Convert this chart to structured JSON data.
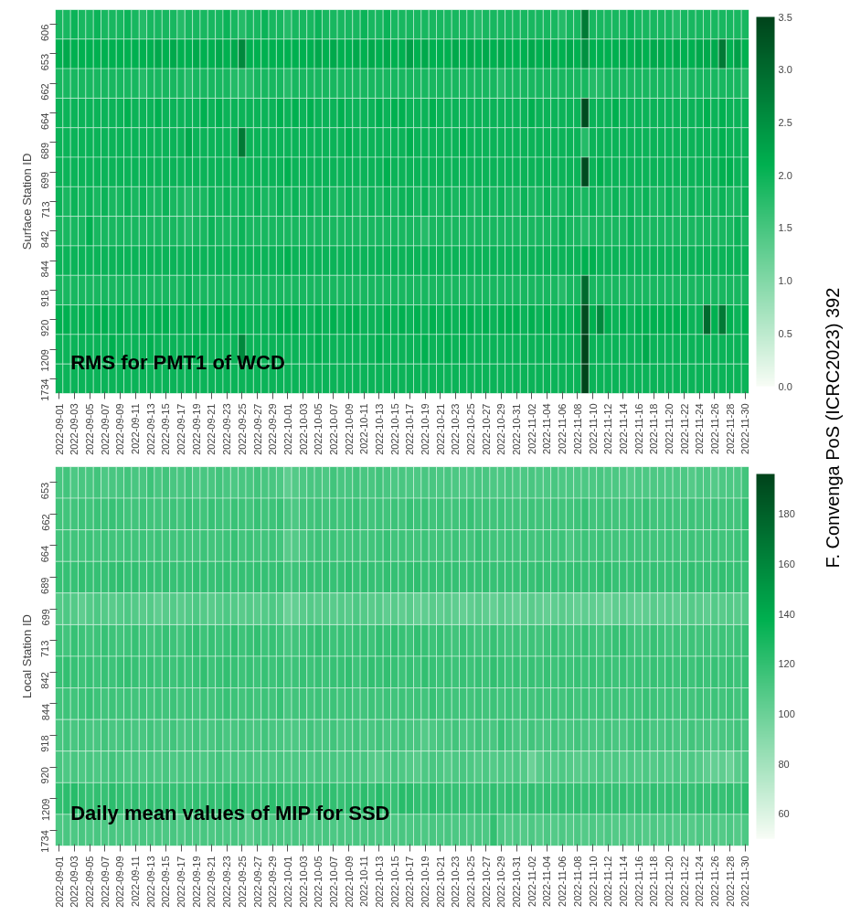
{
  "chart_data": [
    {
      "type": "heatmap",
      "title": "RMS for PMT1 of WCD",
      "ylabel": "Surface Station ID",
      "annotations": [
        "F. Convenga PoS (ICRC2023) 392"
      ],
      "categories": [
        "2022-09-01",
        null,
        "2022-09-03",
        null,
        "2022-09-05",
        null,
        "2022-09-07",
        null,
        "2022-09-09",
        null,
        "2022-09-11",
        null,
        "2022-09-13",
        null,
        "2022-09-15",
        null,
        "2022-09-17",
        null,
        "2022-09-19",
        null,
        "2022-09-21",
        null,
        "2022-09-23",
        null,
        "2022-09-25",
        null,
        "2022-09-27",
        null,
        "2022-09-29",
        null,
        "2022-10-01",
        null,
        "2022-10-03",
        null,
        "2022-10-05",
        null,
        "2022-10-07",
        null,
        "2022-10-09",
        null,
        "2022-10-11",
        null,
        "2022-10-13",
        null,
        "2022-10-15",
        null,
        "2022-10-17",
        null,
        "2022-10-19",
        null,
        "2022-10-21",
        null,
        "2022-10-23",
        null,
        "2022-10-25",
        null,
        "2022-10-27",
        null,
        "2022-10-29",
        null,
        "2022-10-31",
        null,
        "2022-11-02",
        null,
        "2022-11-04",
        null,
        "2022-11-06",
        null,
        "2022-11-08",
        null,
        "2022-11-10",
        null,
        "2022-11-12",
        null,
        "2022-11-14",
        null,
        "2022-11-16",
        null,
        "2022-11-18",
        null,
        "2022-11-20",
        null,
        "2022-11-22",
        null,
        "2022-11-24",
        null,
        "2022-11-26",
        null,
        "2022-11-28",
        null,
        "2022-11-30"
      ],
      "y_categories": [
        "606",
        "653",
        "662",
        "664",
        "689",
        "699",
        "713",
        "842",
        "844",
        "918",
        "920",
        "1209",
        "1734"
      ],
      "clim": [
        0,
        3.5
      ],
      "cticks": [
        {
          "value": 0,
          "label": "0.0"
        },
        {
          "value": 0.5,
          "label": "0.5"
        },
        {
          "value": 1,
          "label": "1.0"
        },
        {
          "value": 1.5,
          "label": "1.5"
        },
        {
          "value": 2,
          "label": "2.0"
        },
        {
          "value": 2.5,
          "label": "2.5"
        },
        {
          "value": 3,
          "label": "3.0"
        },
        {
          "value": 3.5,
          "label": "3.5"
        }
      ],
      "cells": [
        [
          1.9,
          1.9,
          2.0,
          1.9,
          1.9,
          2.0,
          1.9,
          1.9,
          1.9,
          2.0,
          1.9,
          1.8,
          1.9,
          1.9,
          1.9,
          1.9,
          1.8,
          1.9,
          1.9,
          1.9,
          1.9,
          1.9,
          2.0,
          1.9,
          1.8,
          1.9,
          1.9,
          2.0,
          1.9,
          1.9,
          1.8,
          1.9,
          1.9,
          1.9,
          2.0,
          1.9,
          1.9,
          1.9,
          1.9,
          1.9,
          2.0,
          1.9,
          1.9,
          2.0,
          1.9,
          1.9,
          1.9,
          1.9,
          1.9,
          1.9,
          1.9,
          1.9,
          1.9,
          1.9,
          1.9,
          1.8,
          1.9,
          1.9,
          1.9,
          1.9,
          1.9,
          1.9,
          1.9,
          1.9,
          1.9,
          1.9,
          1.8,
          1.9,
          1.9,
          2.8,
          1.9,
          1.9,
          1.9,
          1.9,
          1.9,
          2.0,
          1.9,
          1.9,
          1.9,
          1.9,
          1.9,
          1.8,
          1.9,
          1.9,
          1.9,
          1.9,
          1.9,
          1.9,
          1.9,
          1.9,
          1.9
        ],
        [
          2.1,
          2.2,
          2.1,
          2.1,
          2.1,
          2.1,
          2.1,
          2.1,
          2.1,
          2.1,
          2.1,
          2.1,
          2.1,
          2.2,
          2.1,
          2.2,
          2.1,
          2.1,
          2.2,
          2.1,
          2.1,
          2.2,
          2.1,
          2.2,
          2.6,
          2.1,
          2.1,
          2.1,
          2.1,
          2.1,
          2.1,
          2.1,
          2.1,
          2.1,
          2.2,
          2.1,
          2.2,
          2.1,
          2.1,
          2.2,
          2.1,
          2.2,
          2.1,
          2.2,
          2.1,
          2.1,
          2.3,
          2.1,
          2.2,
          2.1,
          2.1,
          2.1,
          2.2,
          2.1,
          2.2,
          2.1,
          2.2,
          2.1,
          2.2,
          2.1,
          2.1,
          2.1,
          2.2,
          2.1,
          2.2,
          2.1,
          2.1,
          2.2,
          2.1,
          2.5,
          2.1,
          2.1,
          2.1,
          2.1,
          2.2,
          2.1,
          2.2,
          2.1,
          2.2,
          2.2,
          2.1,
          2.2,
          2.1,
          2.1,
          2.2,
          2.2,
          2.2,
          2.8,
          2.1,
          2.3,
          2.1
        ],
        [
          1.9,
          1.9,
          1.9,
          1.9,
          1.9,
          1.9,
          1.9,
          1.9,
          1.9,
          1.9,
          1.9,
          1.8,
          1.9,
          1.9,
          1.9,
          1.9,
          1.9,
          1.8,
          1.9,
          1.9,
          1.9,
          1.9,
          1.9,
          1.8,
          1.8,
          1.8,
          1.9,
          1.9,
          1.9,
          1.9,
          1.8,
          1.9,
          1.9,
          1.9,
          1.9,
          1.9,
          1.9,
          1.9,
          1.9,
          1.9,
          1.9,
          1.9,
          1.9,
          1.9,
          1.9,
          1.9,
          1.9,
          1.9,
          1.9,
          1.9,
          1.9,
          1.9,
          1.9,
          1.9,
          1.9,
          1.9,
          1.9,
          1.9,
          1.8,
          1.9,
          1.9,
          1.9,
          1.9,
          1.9,
          1.9,
          1.9,
          1.9,
          1.9,
          1.9,
          1.9,
          1.8,
          1.8,
          1.9,
          1.9,
          1.9,
          1.9,
          1.9,
          1.9,
          1.9,
          1.9,
          1.9,
          1.9,
          1.8,
          1.9,
          1.9,
          1.9,
          1.9,
          1.9,
          1.9,
          1.9,
          1.8
        ],
        [
          2.0,
          2.0,
          2.0,
          2.0,
          2.0,
          2.0,
          2.0,
          2.0,
          2.0,
          2.1,
          2.0,
          2.0,
          2.0,
          2.1,
          2.0,
          2.0,
          2.0,
          2.0,
          2.0,
          2.1,
          2.0,
          2.1,
          2.0,
          2.0,
          2.0,
          2.0,
          2.0,
          2.0,
          2.0,
          2.1,
          2.0,
          2.1,
          2.0,
          2.1,
          2.0,
          2.0,
          2.0,
          2.1,
          2.0,
          2.0,
          2.0,
          2.0,
          2.1,
          2.0,
          2.1,
          2.1,
          2.0,
          2.0,
          2.0,
          2.1,
          2.0,
          2.0,
          2.0,
          2.0,
          2.0,
          2.0,
          2.0,
          2.0,
          2.0,
          2.0,
          2.0,
          2.0,
          2.1,
          2.0,
          2.0,
          2.0,
          2.0,
          2.0,
          2.0,
          3.4,
          2.0,
          2.0,
          2.0,
          2.1,
          2.0,
          2.0,
          2.0,
          2.0,
          2.0,
          2.0,
          2.0,
          2.0,
          2.0,
          2.0,
          2.0,
          2.1,
          2.0,
          2.1,
          2.0,
          2.0,
          2.0
        ],
        [
          2.0,
          2.0,
          2.0,
          2.0,
          2.0,
          2.0,
          2.0,
          2.0,
          2.0,
          2.0,
          2.0,
          2.0,
          2.0,
          2.0,
          2.0,
          2.0,
          2.0,
          2.2,
          2.0,
          2.0,
          2.0,
          2.0,
          2.0,
          2.0,
          2.8,
          2.0,
          2.0,
          2.0,
          2.0,
          2.0,
          2.0,
          2.0,
          2.0,
          2.0,
          2.0,
          2.0,
          2.0,
          2.0,
          2.1,
          2.0,
          2.0,
          2.0,
          2.0,
          2.0,
          2.0,
          2.0,
          2.1,
          2.0,
          2.0,
          2.0,
          2.0,
          2.0,
          2.0,
          2.1,
          2.0,
          2.0,
          2.0,
          2.0,
          2.0,
          2.0,
          2.0,
          2.0,
          2.0,
          2.0,
          2.0,
          2.0,
          2.0,
          2.0,
          2.0,
          1.8,
          2.0,
          2.0,
          2.0,
          2.0,
          2.0,
          2.0,
          2.0,
          2.0,
          2.0,
          2.0,
          2.0,
          2.0,
          2.0,
          2.0,
          2.0,
          2.0,
          2.0,
          2.1,
          2.0,
          2.0,
          2.0
        ],
        [
          2.0,
          2.0,
          2.0,
          2.0,
          2.0,
          2.0,
          2.0,
          2.0,
          2.0,
          2.0,
          2.0,
          2.0,
          2.0,
          2.0,
          2.0,
          2.0,
          2.0,
          2.0,
          2.0,
          2.0,
          2.0,
          2.0,
          2.0,
          2.0,
          2.0,
          2.0,
          2.0,
          2.0,
          2.0,
          2.0,
          2.1,
          2.0,
          2.0,
          2.0,
          2.0,
          2.0,
          2.0,
          2.0,
          2.0,
          2.0,
          2.0,
          2.0,
          2.0,
          2.1,
          2.0,
          2.0,
          2.0,
          2.0,
          2.0,
          2.0,
          2.0,
          2.0,
          2.0,
          2.0,
          2.0,
          2.0,
          2.0,
          2.0,
          2.0,
          2.0,
          2.0,
          2.0,
          2.0,
          2.0,
          2.0,
          2.0,
          2.0,
          2.0,
          2.0,
          3.4,
          2.0,
          2.1,
          2.0,
          2.0,
          2.0,
          2.0,
          2.0,
          2.0,
          2.0,
          2.0,
          2.0,
          2.0,
          2.0,
          2.0,
          2.0,
          2.0,
          2.0,
          2.1,
          2.1,
          2.0,
          2.0
        ],
        [
          2.0,
          1.9,
          2.0,
          1.9,
          2.0,
          1.9,
          2.0,
          1.9,
          1.9,
          2.0,
          1.9,
          2.0,
          1.9,
          1.9,
          2.0,
          1.9,
          1.9,
          1.8,
          1.9,
          1.9,
          2.0,
          1.9,
          2.0,
          1.9,
          2.0,
          1.9,
          2.0,
          1.9,
          1.9,
          2.0,
          1.9,
          2.0,
          1.9,
          2.0,
          1.9,
          2.0,
          1.9,
          1.9,
          2.0,
          1.9,
          1.9,
          2.0,
          1.9,
          2.0,
          1.9,
          2.0,
          2.0,
          1.9,
          2.0,
          1.9,
          1.9,
          2.0,
          1.9,
          2.0,
          1.9,
          1.9,
          2.0,
          1.9,
          2.0,
          1.9,
          1.9,
          2.0,
          1.9,
          1.9,
          2.0,
          1.9,
          1.9,
          2.0,
          1.9,
          1.9,
          2.0,
          1.9,
          1.9,
          2.0,
          1.9,
          2.0,
          1.9,
          2.0,
          1.9,
          1.9,
          2.0,
          1.9,
          1.9,
          2.0,
          1.9,
          2.0,
          1.9,
          2.0,
          1.9,
          1.9,
          2.0
        ],
        [
          1.9,
          1.9,
          1.9,
          1.9,
          2.1,
          1.9,
          1.9,
          1.9,
          1.9,
          1.9,
          1.9,
          1.9,
          1.9,
          1.9,
          1.9,
          1.9,
          1.9,
          1.8,
          1.9,
          1.9,
          2.0,
          1.9,
          1.9,
          1.9,
          2.0,
          1.9,
          1.9,
          1.9,
          1.9,
          1.9,
          1.9,
          1.9,
          1.9,
          1.9,
          1.9,
          1.9,
          1.9,
          1.9,
          1.9,
          1.9,
          1.9,
          1.9,
          1.9,
          1.9,
          1.9,
          1.9,
          1.9,
          1.9,
          1.8,
          1.9,
          1.9,
          1.9,
          1.9,
          1.9,
          1.9,
          1.9,
          1.9,
          1.9,
          1.9,
          1.9,
          1.9,
          1.9,
          1.9,
          1.9,
          1.9,
          1.9,
          2.0,
          1.9,
          1.9,
          1.8,
          1.9,
          1.9,
          1.9,
          1.9,
          1.9,
          2.0,
          1.9,
          1.9,
          1.9,
          1.9,
          1.9,
          1.9,
          1.9,
          1.9,
          1.9,
          1.9,
          1.9,
          1.9,
          1.9,
          2.0,
          1.9
        ],
        [
          2.0,
          2.0,
          2.0,
          2.0,
          2.0,
          2.0,
          2.0,
          2.0,
          2.0,
          2.0,
          2.0,
          2.0,
          2.0,
          2.0,
          2.0,
          2.0,
          2.0,
          2.0,
          2.0,
          2.0,
          2.0,
          2.0,
          2.0,
          2.0,
          2.0,
          2.0,
          2.0,
          2.0,
          2.0,
          2.0,
          2.1,
          2.0,
          2.0,
          2.0,
          2.0,
          2.0,
          2.0,
          2.0,
          2.0,
          2.0,
          2.0,
          2.0,
          2.0,
          2.0,
          2.0,
          2.0,
          2.0,
          2.0,
          2.0,
          2.0,
          2.0,
          2.0,
          2.0,
          2.0,
          2.0,
          2.0,
          2.0,
          2.0,
          2.0,
          2.0,
          2.0,
          2.0,
          2.0,
          2.0,
          2.0,
          2.0,
          2.0,
          2.0,
          2.0,
          2.1,
          2.1,
          2.0,
          2.0,
          2.0,
          2.0,
          2.0,
          2.0,
          2.0,
          2.0,
          2.0,
          2.0,
          2.0,
          2.0,
          2.0,
          2.0,
          2.0,
          2.0,
          2.0,
          2.0,
          2.0,
          2.0
        ],
        [
          1.9,
          1.9,
          1.9,
          1.9,
          1.9,
          1.9,
          1.9,
          1.9,
          1.9,
          1.9,
          1.9,
          1.9,
          1.9,
          1.9,
          1.9,
          1.9,
          1.9,
          2.0,
          1.9,
          1.9,
          1.9,
          1.9,
          1.9,
          1.9,
          1.9,
          1.9,
          1.9,
          1.9,
          1.9,
          1.9,
          1.9,
          1.9,
          1.9,
          1.9,
          1.9,
          1.9,
          1.9,
          1.9,
          1.9,
          1.9,
          1.9,
          1.9,
          1.9,
          1.9,
          1.9,
          1.9,
          1.9,
          1.9,
          1.9,
          1.9,
          1.9,
          1.9,
          1.9,
          1.9,
          1.9,
          1.9,
          1.9,
          1.9,
          1.9,
          1.9,
          1.9,
          1.9,
          1.9,
          1.9,
          1.9,
          1.9,
          1.8,
          1.9,
          1.9,
          3.0,
          1.9,
          1.9,
          1.9,
          1.9,
          1.9,
          1.9,
          1.9,
          1.9,
          1.9,
          1.9,
          1.9,
          1.9,
          1.9,
          1.9,
          1.9,
          1.9,
          1.9,
          1.9,
          1.9,
          1.9,
          1.9
        ],
        [
          2.1,
          2.1,
          2.0,
          2.1,
          2.0,
          2.1,
          2.1,
          2.0,
          2.1,
          2.0,
          2.0,
          2.1,
          2.0,
          2.1,
          2.1,
          2.0,
          2.1,
          2.0,
          2.0,
          2.1,
          2.0,
          2.1,
          2.1,
          2.0,
          2.1,
          2.0,
          2.0,
          2.0,
          2.0,
          2.1,
          2.1,
          2.1,
          2.0,
          2.0,
          2.1,
          2.0,
          2.1,
          2.0,
          2.1,
          2.1,
          2.0,
          2.0,
          2.0,
          2.1,
          2.0,
          2.1,
          2.0,
          2.1,
          2.0,
          2.1,
          2.0,
          2.1,
          2.0,
          2.1,
          2.1,
          2.0,
          2.1,
          2.0,
          2.1,
          2.1,
          2.1,
          2.0,
          2.1,
          2.0,
          2.1,
          2.0,
          2.1,
          2.0,
          2.1,
          3.4,
          2.1,
          2.6,
          2.1,
          2.0,
          2.1,
          2.0,
          2.1,
          2.1,
          2.1,
          2.1,
          2.1,
          2.1,
          2.1,
          2.0,
          2.0,
          3.0,
          2.1,
          2.8,
          2.1,
          2.0,
          2.1
        ],
        [
          2.0,
          2.0,
          2.0,
          2.0,
          2.0,
          2.0,
          2.0,
          2.1,
          2.0,
          2.0,
          2.0,
          2.0,
          2.1,
          2.0,
          2.0,
          2.0,
          2.0,
          2.0,
          2.1,
          2.0,
          2.0,
          2.0,
          2.0,
          2.0,
          2.6,
          2.0,
          2.0,
          2.0,
          2.0,
          2.0,
          2.0,
          2.0,
          2.0,
          2.0,
          2.1,
          2.0,
          2.0,
          2.0,
          2.0,
          2.0,
          2.0,
          2.0,
          2.1,
          2.0,
          2.0,
          2.0,
          2.0,
          2.0,
          2.1,
          2.0,
          2.0,
          2.1,
          2.0,
          2.1,
          2.0,
          2.0,
          2.0,
          2.0,
          2.0,
          2.0,
          2.0,
          2.0,
          2.0,
          2.0,
          2.0,
          2.0,
          2.0,
          2.0,
          2.0,
          3.5,
          2.0,
          2.0,
          2.0,
          2.0,
          2.0,
          2.0,
          2.0,
          2.2,
          2.0,
          2.0,
          2.0,
          2.0,
          2.0,
          2.0,
          2.0,
          2.0,
          2.0,
          2.0,
          2.0,
          2.0,
          2.0
        ],
        [
          2.0,
          2.0,
          2.0,
          2.0,
          2.0,
          2.0,
          2.0,
          2.0,
          2.0,
          2.0,
          2.0,
          2.0,
          2.0,
          2.0,
          2.0,
          2.0,
          2.0,
          2.0,
          2.0,
          2.0,
          2.0,
          2.0,
          2.0,
          2.0,
          2.0,
          2.0,
          2.0,
          2.0,
          2.0,
          2.0,
          2.0,
          2.0,
          2.0,
          2.0,
          2.0,
          2.0,
          2.0,
          2.0,
          2.0,
          2.0,
          2.0,
          2.0,
          2.0,
          2.0,
          2.0,
          2.0,
          2.0,
          2.0,
          2.0,
          2.0,
          2.0,
          2.0,
          2.0,
          2.0,
          2.0,
          2.0,
          2.0,
          2.0,
          2.0,
          2.0,
          2.0,
          2.0,
          2.0,
          2.0,
          2.0,
          2.0,
          2.0,
          2.0,
          2.0,
          3.5,
          2.0,
          2.0,
          2.0,
          2.0,
          2.0,
          2.0,
          2.0,
          2.0,
          2.0,
          2.0,
          2.0,
          2.0,
          2.0,
          2.0,
          2.0,
          2.0,
          2.0,
          2.0,
          2.0,
          2.0,
          2.0
        ]
      ]
    },
    {
      "type": "heatmap",
      "title": "Daily mean values of MIP for SSD",
      "ylabel": "Local Station ID",
      "categories": [
        "2022-09-01",
        null,
        "2022-09-03",
        null,
        "2022-09-05",
        null,
        "2022-09-07",
        null,
        "2022-09-09",
        null,
        "2022-09-11",
        null,
        "2022-09-13",
        null,
        "2022-09-15",
        null,
        "2022-09-17",
        null,
        "2022-09-19",
        null,
        "2022-09-21",
        null,
        "2022-09-23",
        null,
        "2022-09-25",
        null,
        "2022-09-27",
        null,
        "2022-09-29",
        null,
        "2022-10-01",
        null,
        "2022-10-03",
        null,
        "2022-10-05",
        null,
        "2022-10-07",
        null,
        "2022-10-09",
        null,
        "2022-10-11",
        null,
        "2022-10-13",
        null,
        "2022-10-15",
        null,
        "2022-10-17",
        null,
        "2022-10-19",
        null,
        "2022-10-21",
        null,
        "2022-10-23",
        null,
        "2022-10-25",
        null,
        "2022-10-27",
        null,
        "2022-10-29",
        null,
        "2022-10-31",
        null,
        "2022-11-02",
        null,
        "2022-11-04",
        null,
        "2022-11-06",
        null,
        "2022-11-08",
        null,
        "2022-11-10",
        null,
        "2022-11-12",
        null,
        "2022-11-14",
        null,
        "2022-11-16",
        null,
        "2022-11-18",
        null,
        "2022-11-20",
        null,
        "2022-11-22",
        null,
        "2022-11-24",
        null,
        "2022-11-26",
        null,
        "2022-11-28",
        null,
        "2022-11-30"
      ],
      "y_categories": [
        "653",
        "662",
        "664",
        "689",
        "699",
        "713",
        "842",
        "844",
        "918",
        "920",
        "1209",
        "1734"
      ],
      "clim": [
        50,
        196
      ],
      "cticks": [
        60,
        80,
        100,
        120,
        140,
        160,
        180
      ],
      "cells": [
        [
          112,
          114,
          110,
          112,
          112,
          114,
          110,
          112,
          112,
          114,
          112,
          112,
          116,
          112,
          114,
          112,
          112,
          114,
          110,
          112,
          112,
          114,
          112,
          110,
          112,
          112,
          114,
          112,
          112,
          110,
          104,
          108,
          110,
          112,
          112,
          110,
          114,
          112,
          112,
          114,
          112,
          112,
          114,
          112,
          110,
          112,
          110,
          110,
          112,
          112,
          110,
          112,
          110,
          110,
          110,
          112,
          112,
          110,
          110,
          112,
          110,
          110,
          112,
          110,
          110,
          112,
          110,
          110,
          110,
          110,
          110,
          112,
          110,
          110,
          110,
          108,
          110,
          110,
          110,
          110,
          110,
          110,
          110,
          108,
          110,
          110,
          108,
          110,
          110,
          110,
          114
        ],
        [
          115,
          115,
          114,
          116,
          115,
          117,
          116,
          118,
          116,
          115,
          114,
          116,
          115,
          114,
          115,
          116,
          114,
          118,
          116,
          115,
          118,
          116,
          115,
          117,
          116,
          114,
          118,
          115,
          116,
          118,
          112,
          110,
          114,
          115,
          116,
          114,
          116,
          115,
          116,
          118,
          115,
          114,
          116,
          115,
          116,
          114,
          118,
          116,
          117,
          115,
          116,
          114,
          115,
          116,
          118,
          114,
          116,
          115,
          116,
          114,
          115,
          114,
          116,
          115,
          114,
          116,
          115,
          114,
          116,
          118,
          114,
          115,
          116,
          114,
          115,
          116,
          114,
          118,
          115,
          114,
          116,
          115,
          114,
          116,
          114,
          115,
          116,
          114,
          115,
          114,
          120
        ],
        [
          114,
          116,
          114,
          115,
          116,
          114,
          116,
          115,
          114,
          116,
          115,
          116,
          114,
          116,
          115,
          114,
          116,
          115,
          114,
          116,
          114,
          115,
          116,
          118,
          114,
          116,
          115,
          114,
          116,
          114,
          106,
          108,
          112,
          114,
          116,
          114,
          116,
          115,
          114,
          116,
          114,
          115,
          116,
          118,
          114,
          116,
          115,
          114,
          116,
          114,
          115,
          114,
          116,
          115,
          114,
          118,
          116,
          115,
          114,
          116,
          114,
          116,
          114,
          115,
          116,
          114,
          116,
          110,
          114,
          116,
          114,
          116,
          115,
          114,
          115,
          116,
          114,
          116,
          115,
          114,
          116,
          115,
          114,
          116,
          115,
          114,
          116,
          115,
          114,
          116,
          118
        ],
        [
          118,
          119,
          118,
          120,
          118,
          119,
          118,
          120,
          121,
          119,
          120,
          118,
          119,
          118,
          120,
          118,
          119,
          118,
          120,
          119,
          118,
          119,
          120,
          118,
          119,
          118,
          120,
          119,
          118,
          120,
          114,
          116,
          118,
          119,
          118,
          120,
          118,
          119,
          121,
          118,
          120,
          119,
          118,
          120,
          119,
          118,
          120,
          121,
          118,
          119,
          118,
          120,
          119,
          118,
          119,
          118,
          120,
          118,
          119,
          118,
          118,
          119,
          118,
          120,
          118,
          119,
          118,
          118,
          120,
          118,
          118,
          120,
          121,
          118,
          119,
          118,
          120,
          118,
          119,
          118,
          118,
          119,
          118,
          120,
          118,
          119,
          118,
          120,
          118,
          119,
          118
        ],
        [
          108,
          110,
          108,
          104,
          108,
          110,
          108,
          106,
          108,
          110,
          108,
          106,
          108,
          104,
          106,
          108,
          106,
          108,
          110,
          108,
          106,
          108,
          110,
          108,
          106,
          108,
          106,
          108,
          110,
          108,
          100,
          102,
          106,
          108,
          106,
          108,
          106,
          108,
          106,
          110,
          108,
          106,
          108,
          104,
          106,
          104,
          106,
          102,
          104,
          106,
          104,
          106,
          104,
          102,
          104,
          106,
          104,
          102,
          106,
          104,
          102,
          104,
          106,
          104,
          102,
          104,
          106,
          104,
          102,
          104,
          104,
          102,
          100,
          104,
          106,
          104,
          102,
          104,
          106,
          104,
          106,
          104,
          106,
          108,
          106,
          104,
          108,
          106,
          108,
          106,
          108
        ],
        [
          116,
          114,
          118,
          116,
          114,
          116,
          118,
          116,
          114,
          116,
          118,
          116,
          114,
          116,
          118,
          116,
          114,
          118,
          120,
          116,
          118,
          116,
          118,
          120,
          116,
          118,
          120,
          116,
          118,
          116,
          112,
          114,
          116,
          118,
          120,
          118,
          116,
          118,
          116,
          118,
          118,
          116,
          120,
          118,
          120,
          118,
          116,
          120,
          118,
          116,
          118,
          116,
          114,
          118,
          116,
          114,
          116,
          118,
          116,
          114,
          116,
          114,
          116,
          114,
          116,
          118,
          116,
          114,
          116,
          118,
          116,
          114,
          116,
          118,
          120,
          116,
          114,
          116,
          118,
          116,
          114,
          116,
          114,
          116,
          114,
          116,
          114,
          116,
          114,
          116,
          118
        ],
        [
          118,
          120,
          118,
          116,
          118,
          116,
          118,
          116,
          118,
          120,
          118,
          116,
          118,
          116,
          118,
          116,
          118,
          116,
          118,
          120,
          116,
          118,
          120,
          118,
          116,
          118,
          116,
          118,
          116,
          118,
          114,
          116,
          118,
          116,
          118,
          116,
          118,
          118,
          120,
          116,
          118,
          120,
          118,
          120,
          118,
          116,
          118,
          116,
          120,
          118,
          116,
          118,
          116,
          118,
          116,
          118,
          116,
          120,
          118,
          116,
          118,
          116,
          118,
          116,
          118,
          116,
          118,
          116,
          118,
          116,
          118,
          116,
          118,
          116,
          118,
          116,
          118,
          116,
          118,
          116,
          118,
          116,
          118,
          116,
          118,
          116,
          118,
          116,
          118,
          116,
          118
        ],
        [
          114,
          116,
          114,
          116,
          118,
          116,
          114,
          116,
          114,
          116,
          114,
          116,
          114,
          116,
          114,
          116,
          114,
          116,
          114,
          116,
          114,
          116,
          118,
          116,
          114,
          116,
          114,
          116,
          114,
          118,
          112,
          114,
          116,
          114,
          116,
          114,
          116,
          114,
          116,
          114,
          114,
          116,
          114,
          116,
          114,
          116,
          114,
          116,
          114,
          118,
          114,
          116,
          114,
          116,
          114,
          116,
          114,
          116,
          114,
          116,
          114,
          116,
          114,
          116,
          114,
          116,
          114,
          116,
          114,
          116,
          114,
          116,
          114,
          116,
          114,
          116,
          114,
          118,
          116,
          114,
          116,
          114,
          116,
          114,
          116,
          114,
          116,
          114,
          116,
          114,
          116
        ],
        [
          112,
          114,
          112,
          114,
          112,
          112,
          114,
          112,
          112,
          114,
          112,
          112,
          114,
          112,
          112,
          114,
          112,
          112,
          114,
          112,
          112,
          114,
          112,
          112,
          114,
          112,
          112,
          114,
          112,
          112,
          110,
          110,
          112,
          114,
          112,
          112,
          114,
          112,
          112,
          114,
          112,
          112,
          114,
          112,
          112,
          114,
          112,
          112,
          108,
          110,
          112,
          112,
          114,
          112,
          112,
          114,
          112,
          112,
          118,
          114,
          112,
          112,
          114,
          112,
          112,
          114,
          112,
          112,
          114,
          112,
          112,
          112,
          114,
          112,
          112,
          114,
          116,
          116,
          112,
          112,
          114,
          112,
          112,
          114,
          112,
          112,
          110,
          112,
          112,
          114,
          112
        ],
        [
          112,
          110,
          112,
          110,
          112,
          110,
          112,
          114,
          112,
          110,
          112,
          110,
          112,
          110,
          112,
          110,
          112,
          110,
          112,
          110,
          112,
          114,
          110,
          112,
          110,
          112,
          110,
          112,
          110,
          112,
          110,
          110,
          112,
          110,
          112,
          110,
          112,
          110,
          112,
          110,
          112,
          108,
          106,
          110,
          112,
          110,
          108,
          106,
          110,
          112,
          110,
          108,
          110,
          112,
          110,
          108,
          110,
          108,
          110,
          108,
          110,
          108,
          100,
          106,
          110,
          108,
          110,
          108,
          106,
          108,
          108,
          110,
          108,
          110,
          108,
          110,
          108,
          110,
          108,
          110,
          108,
          110,
          108,
          110,
          108,
          104,
          102,
          104,
          100,
          106,
          110
        ],
        [
          120,
          122,
          124,
          120,
          118,
          120,
          118,
          122,
          120,
          118,
          120,
          118,
          120,
          118,
          120,
          118,
          120,
          118,
          120,
          118,
          120,
          118,
          122,
          124,
          120,
          118,
          120,
          118,
          122,
          120,
          118,
          120,
          118,
          120,
          118,
          122,
          120,
          118,
          120,
          118,
          122,
          118,
          124,
          120,
          118,
          124,
          122,
          120,
          118,
          122,
          118,
          120,
          118,
          120,
          118,
          120,
          118,
          120,
          118,
          120,
          120,
          118,
          120,
          118,
          120,
          118,
          120,
          118,
          120,
          118,
          120,
          118,
          120,
          118,
          120,
          118,
          120,
          118,
          120,
          118,
          120,
          118,
          120,
          118,
          120,
          118,
          120,
          118,
          120,
          118,
          122
        ],
        [
          110,
          112,
          110,
          112,
          110,
          112,
          110,
          112,
          110,
          112,
          110,
          112,
          110,
          112,
          110,
          112,
          110,
          112,
          110,
          112,
          110,
          112,
          110,
          112,
          110,
          106,
          110,
          112,
          110,
          112,
          110,
          112,
          110,
          112,
          110,
          112,
          110,
          112,
          110,
          112,
          112,
          112,
          110,
          112,
          110,
          112,
          110,
          112,
          110,
          112,
          110,
          112,
          110,
          112,
          110,
          112,
          110,
          120,
          110,
          108,
          110,
          108,
          110,
          108,
          110,
          108,
          110,
          108,
          110,
          108,
          110,
          108,
          110,
          108,
          110,
          108,
          110,
          108,
          110,
          108,
          110,
          108,
          110,
          108,
          110,
          108,
          110,
          108,
          110,
          108,
          110
        ]
      ]
    }
  ]
}
